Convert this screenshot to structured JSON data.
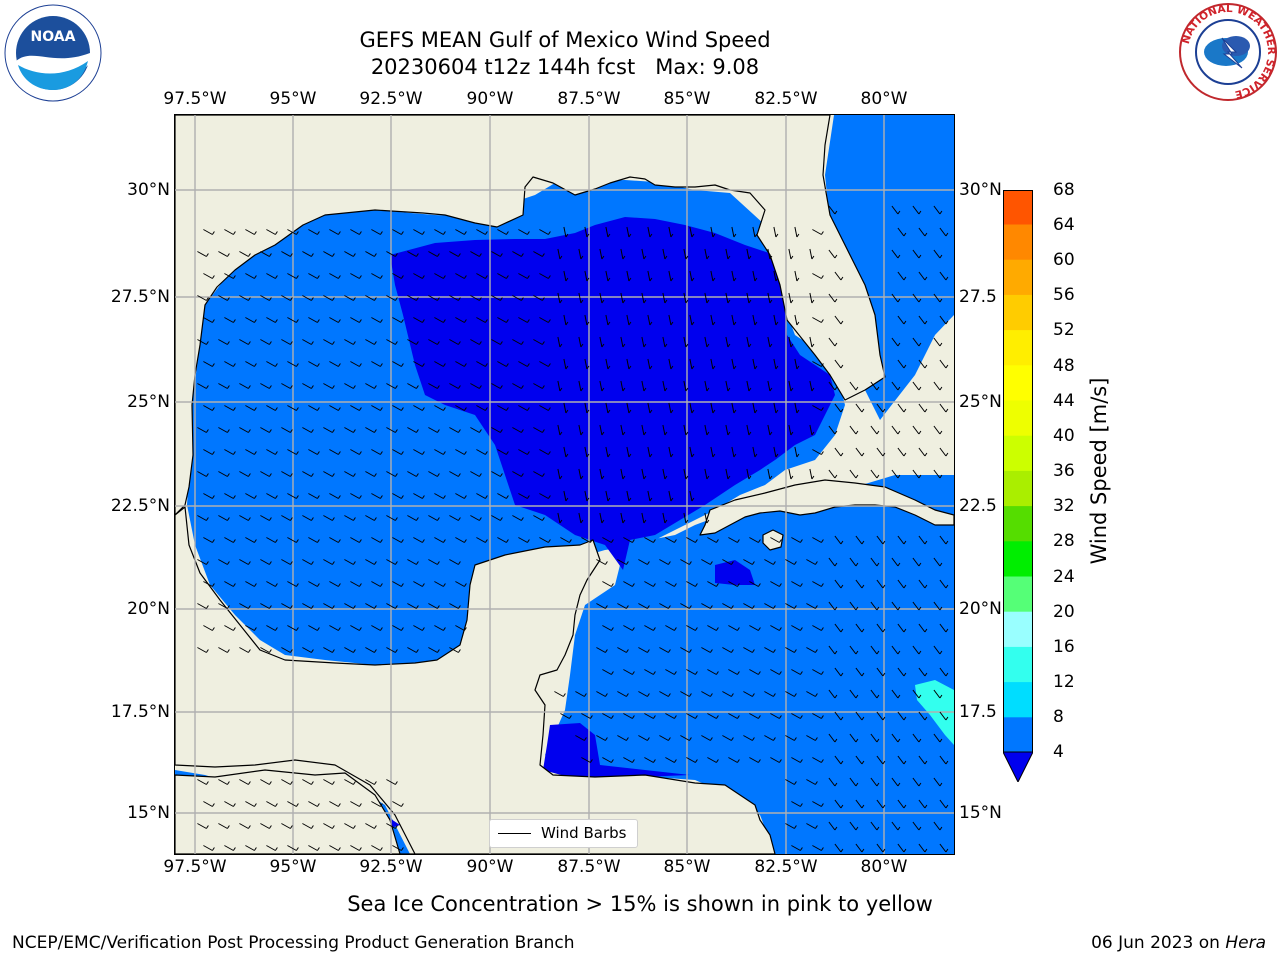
{
  "title": {
    "line1": "GEFS MEAN Gulf of Mexico Wind Speed",
    "line2": "20230604 t12z 144h fcst   Max: 9.08"
  },
  "map": {
    "lon_ticks": [
      "97.5°W",
      "95°W",
      "92.5°W",
      "90°W",
      "87.5°W",
      "85°W",
      "82.5°W",
      "80°W"
    ],
    "lat_ticks": [
      "30°N",
      "27.5°N",
      "25°N",
      "22.5°N",
      "20°N",
      "17.5°N",
      "15°N"
    ],
    "lat_ticks_right": [
      "30°N",
      "27.5",
      "25°N",
      "22.5",
      "20°N",
      "17.5",
      "15°N"
    ],
    "extent": {
      "lon_min": -98,
      "lon_max": -78.2,
      "lat_min": 14.0,
      "lat_max": 31.7
    },
    "colors": {
      "land": "#efefe0",
      "speed_4_8": "#0077ff",
      "speed_below_4": "#0000ee",
      "speed_12_16": "#33ffee",
      "coastline": "#000000",
      "grid": "#b0b0b0"
    },
    "legend_label": "Wind Barbs"
  },
  "colorbar": {
    "title": "Wind Speed [m/s]",
    "levels": [
      "4",
      "8",
      "12",
      "16",
      "20",
      "24",
      "28",
      "32",
      "36",
      "40",
      "44",
      "48",
      "52",
      "56",
      "60",
      "64",
      "68"
    ],
    "colors": [
      "#0077ff",
      "#00ddff",
      "#33ffee",
      "#99ffff",
      "#55ff77",
      "#00ee00",
      "#55dd00",
      "#aaee00",
      "#ccff00",
      "#eeff00",
      "#ffff00",
      "#ffee00",
      "#ffcc00",
      "#ffaa00",
      "#ff8800",
      "#ff5500",
      "#ff2200",
      "#ff0000"
    ],
    "under_color": "#0000ee"
  },
  "caption": "Sea Ice Concentration > 15% is shown in pink to yellow",
  "footer": {
    "left": "NCEP/EMC/Verification Post Processing Product Generation Branch",
    "right_prefix": "06 Jun 2023 on ",
    "right_host": "Hera"
  },
  "logos": {
    "noaa_text": "NOAA",
    "nws_ring_text": "NATIONAL WEATHER SERVICE"
  }
}
